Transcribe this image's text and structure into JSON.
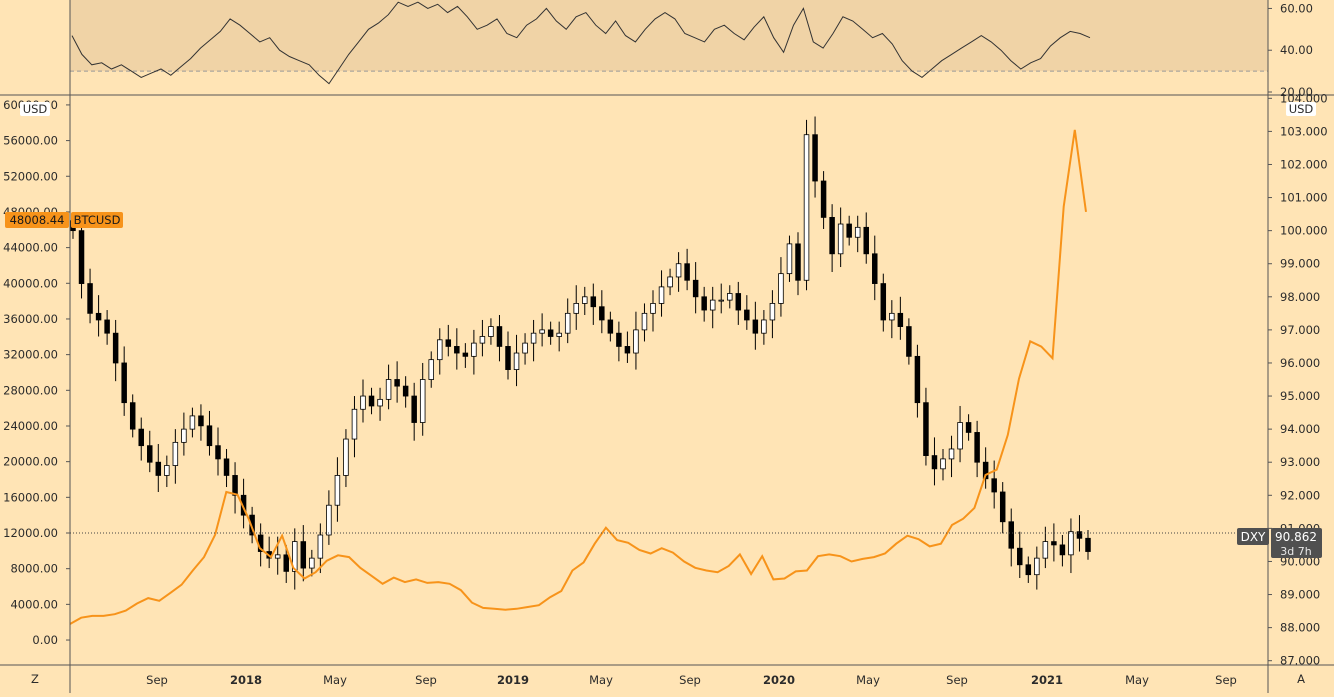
{
  "colors": {
    "background": "#ffe4b5",
    "rsi_band": "#f0d3a6",
    "btc_line": "#f7931a",
    "candle_up": "#ffffff",
    "candle_down": "#000000",
    "axis_line": "#555555",
    "dxy_label_bg": "#505050"
  },
  "labels": {
    "left_unit": "USD",
    "right_unit": "USD",
    "btc_price": "48008.44",
    "btc_symbol": "BTCUSD",
    "dxy_symbol": "DXY",
    "dxy_price": "90.862",
    "dxy_countdown": "3d 7h",
    "corner_left": "Z",
    "corner_right": "A"
  },
  "chart_data": [
    {
      "type": "line",
      "panel": "oscillator",
      "ylim": [
        20,
        65
      ],
      "ticks": [
        "60.00",
        "40.00",
        "20.00"
      ],
      "band": [
        30,
        65
      ],
      "values": [
        47,
        38,
        33,
        34,
        31,
        33,
        30,
        27,
        29,
        31,
        28,
        32,
        36,
        41,
        45,
        49,
        55,
        52,
        48,
        44,
        46,
        40,
        37,
        35,
        33,
        28,
        24,
        31,
        38,
        44,
        50,
        53,
        57,
        63,
        61,
        63,
        60,
        62,
        58,
        61,
        56,
        50,
        52,
        55,
        48,
        46,
        52,
        55,
        60,
        54,
        50,
        56,
        58,
        52,
        48,
        54,
        47,
        44,
        50,
        55,
        58,
        55,
        48,
        46,
        44,
        50,
        52,
        48,
        45,
        51,
        56,
        46,
        39,
        52,
        60,
        44,
        41,
        48,
        56,
        54,
        50,
        46,
        48,
        43,
        35,
        30,
        27,
        31,
        35,
        38,
        41,
        44,
        47,
        44,
        40,
        35,
        31,
        34,
        36,
        42,
        46,
        49,
        48,
        46
      ]
    },
    {
      "type": "candlestick",
      "panel": "main",
      "series": "DXY",
      "ylabel": "USD",
      "ylim": [
        86.87,
        104.07
      ],
      "ticks": [
        "104.000",
        "103.000",
        "102.000",
        "101.000",
        "100.000",
        "99.000",
        "98.000",
        "97.000",
        "96.000",
        "95.000",
        "94.000",
        "93.000",
        "92.000",
        "91.000",
        "90.000",
        "89.000",
        "88.000",
        "87.000"
      ],
      "last": 90.862,
      "close": [
        100.0,
        98.4,
        97.5,
        97.3,
        96.9,
        96.0,
        94.8,
        94.0,
        93.5,
        93.0,
        92.6,
        92.9,
        93.6,
        94.0,
        94.4,
        94.1,
        93.5,
        93.1,
        92.6,
        92.0,
        91.4,
        90.8,
        90.3,
        90.1,
        90.2,
        89.7,
        90.6,
        89.8,
        90.1,
        90.8,
        91.7,
        92.6,
        93.7,
        94.6,
        95.0,
        94.7,
        94.9,
        95.5,
        95.3,
        95.0,
        94.2,
        95.5,
        96.1,
        96.7,
        96.5,
        96.3,
        96.2,
        96.6,
        96.8,
        97.1,
        96.5,
        95.8,
        96.3,
        96.6,
        96.9,
        97.0,
        96.8,
        96.9,
        97.5,
        97.8,
        98.0,
        97.7,
        97.3,
        96.9,
        96.5,
        96.3,
        97.0,
        97.5,
        97.8,
        98.3,
        98.6,
        99.0,
        98.5,
        98.0,
        97.6,
        97.9,
        97.9,
        98.1,
        97.6,
        97.3,
        96.9,
        97.3,
        97.8,
        98.7,
        99.6,
        98.5,
        102.9,
        101.5,
        100.4,
        99.3,
        100.2,
        99.8,
        100.1,
        99.3,
        98.4,
        97.3,
        97.5,
        97.1,
        96.2,
        94.8,
        93.2,
        92.8,
        93.1,
        93.4,
        94.2,
        93.9,
        93.0,
        92.5,
        92.1,
        91.2,
        90.4,
        89.9,
        89.6,
        90.1,
        90.6,
        90.5,
        90.2,
        90.9,
        90.7,
        90.3
      ],
      "dates": [
        "Sep",
        "2018",
        "May",
        "Sep",
        "2019",
        "May",
        "Sep",
        "2020",
        "May",
        "Sep",
        "2021",
        "May",
        "Sep"
      ]
    },
    {
      "type": "line",
      "panel": "main",
      "series": "BTCUSD",
      "ylabel": "USD",
      "ylim": [
        -2800,
        61000
      ],
      "ticks": [
        "60000.00",
        "56000.00",
        "52000.00",
        "48000.00",
        "44000.00",
        "40000.00",
        "36000.00",
        "32000.00",
        "28000.00",
        "24000.00",
        "20000.00",
        "16000.00",
        "12000.00",
        "8000.00",
        "4000.00",
        "0.00"
      ],
      "last": 48008.44,
      "values": [
        1800,
        2500,
        2700,
        2700,
        2900,
        3300,
        4100,
        4700,
        4400,
        5300,
        6200,
        7800,
        9300,
        11800,
        16600,
        16300,
        13600,
        10300,
        9300,
        11700,
        8100,
        6900,
        7600,
        8900,
        9500,
        9300,
        8100,
        7200,
        6300,
        7000,
        6500,
        6800,
        6400,
        6500,
        6300,
        5600,
        4200,
        3600,
        3500,
        3400,
        3500,
        3700,
        3900,
        4800,
        5500,
        7800,
        8700,
        10800,
        12600,
        11200,
        10900,
        10100,
        9700,
        10300,
        9800,
        8800,
        8100,
        7800,
        7600,
        8300,
        9600,
        7400,
        9400,
        6800,
        6900,
        7700,
        7800,
        9400,
        9600,
        9400,
        8800,
        9100,
        9300,
        9700,
        10800,
        11700,
        11300,
        10500,
        10800,
        12900,
        13600,
        14800,
        18500,
        19100,
        23000,
        29300,
        33500,
        32900,
        31600,
        48600,
        57200,
        48008
      ]
    }
  ]
}
